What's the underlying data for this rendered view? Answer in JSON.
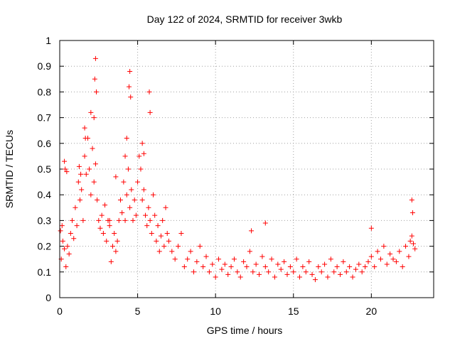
{
  "chart_data": {
    "type": "scatter",
    "title": "Day 122 of 2024, SRMTID for receiver 3wkb",
    "xlabel": "GPS time / hours",
    "ylabel": "SRMTID / TECUs",
    "xlim": [
      0,
      24
    ],
    "ylim": [
      0,
      1
    ],
    "xticks": [
      0,
      5,
      10,
      15,
      20
    ],
    "xtick_labels": [
      "0",
      "5",
      "10",
      "15",
      "20"
    ],
    "yticks": [
      0,
      0.1,
      0.2,
      0.3,
      0.4,
      0.5,
      0.6,
      0.7,
      0.8,
      0.9,
      1
    ],
    "ytick_labels": [
      "0",
      "0.1",
      "0.2",
      "0.3",
      "0.4",
      "0.5",
      "0.6",
      "0.7",
      "0.8",
      "0.9",
      "1"
    ],
    "grid": true,
    "marker": "plus",
    "color": "#ff0000",
    "series": [
      {
        "name": "SRMTID",
        "x": [
          0.05,
          0.1,
          0.15,
          0.2,
          0.3,
          0.4,
          0.5,
          0.6,
          0.7,
          0.8,
          0.9,
          1.0,
          1.1,
          1.2,
          1.3,
          1.4,
          1.5,
          1.6,
          1.7,
          1.8,
          1.9,
          2.0,
          2.1,
          2.2,
          2.3,
          2.4,
          2.5,
          2.6,
          2.7,
          2.8,
          2.9,
          3.0,
          3.1,
          3.2,
          3.3,
          3.4,
          3.5,
          3.6,
          3.7,
          3.8,
          3.9,
          4.0,
          4.1,
          4.2,
          4.3,
          4.4,
          4.5,
          4.6,
          4.7,
          4.8,
          4.9,
          5.0,
          5.1,
          5.2,
          5.3,
          5.4,
          5.5,
          5.6,
          5.7,
          5.8,
          5.9,
          6.0,
          6.1,
          6.2,
          6.3,
          6.4,
          6.5,
          6.6,
          6.7,
          6.8,
          6.9,
          7.0,
          7.2,
          7.4,
          7.6,
          7.8,
          8.0,
          8.2,
          8.4,
          8.6,
          8.8,
          9.0,
          9.2,
          9.4,
          9.6,
          9.8,
          10.0,
          10.2,
          10.4,
          10.6,
          10.8,
          11.0,
          11.2,
          11.4,
          11.6,
          11.8,
          12.0,
          12.2,
          12.4,
          12.6,
          12.8,
          13.0,
          13.2,
          13.4,
          13.6,
          13.8,
          14.0,
          14.2,
          14.4,
          14.6,
          14.8,
          15.0,
          15.2,
          15.4,
          15.6,
          15.8,
          16.0,
          16.2,
          16.4,
          16.6,
          16.8,
          17.0,
          17.2,
          17.4,
          17.6,
          17.8,
          18.0,
          18.2,
          18.4,
          18.6,
          18.8,
          19.0,
          19.2,
          19.4,
          19.6,
          19.8,
          20.0,
          20.2,
          20.4,
          20.6,
          20.8,
          21.0,
          21.2,
          21.4,
          21.6,
          21.8,
          22.0,
          22.2,
          22.4,
          22.5,
          22.6,
          22.7,
          22.8,
          2.3,
          2.25,
          2.35,
          4.5,
          4.45,
          4.55,
          5.75,
          5.8,
          1.6,
          1.65,
          0.3,
          0.35,
          0.45,
          1.25,
          1.35,
          5.3,
          5.4,
          2.2,
          2.0,
          4.3,
          4.2,
          3.6,
          3.2,
          12.3,
          13.2,
          20.0,
          22.6,
          22.65
        ],
        "y": [
          0.26,
          0.15,
          0.28,
          0.22,
          0.19,
          0.12,
          0.2,
          0.17,
          0.25,
          0.3,
          0.23,
          0.35,
          0.28,
          0.45,
          0.38,
          0.42,
          0.3,
          0.55,
          0.48,
          0.62,
          0.5,
          0.4,
          0.58,
          0.45,
          0.52,
          0.38,
          0.3,
          0.27,
          0.32,
          0.25,
          0.36,
          0.22,
          0.3,
          0.28,
          0.14,
          0.2,
          0.25,
          0.18,
          0.22,
          0.3,
          0.38,
          0.33,
          0.45,
          0.3,
          0.4,
          0.5,
          0.35,
          0.42,
          0.3,
          0.38,
          0.32,
          0.45,
          0.55,
          0.5,
          0.38,
          0.42,
          0.32,
          0.28,
          0.35,
          0.3,
          0.25,
          0.4,
          0.32,
          0.22,
          0.28,
          0.18,
          0.24,
          0.3,
          0.2,
          0.35,
          0.25,
          0.22,
          0.18,
          0.15,
          0.2,
          0.25,
          0.12,
          0.15,
          0.18,
          0.1,
          0.14,
          0.2,
          0.12,
          0.16,
          0.1,
          0.13,
          0.08,
          0.15,
          0.11,
          0.13,
          0.09,
          0.12,
          0.15,
          0.1,
          0.08,
          0.14,
          0.12,
          0.18,
          0.1,
          0.13,
          0.09,
          0.16,
          0.12,
          0.1,
          0.15,
          0.08,
          0.13,
          0.11,
          0.14,
          0.09,
          0.12,
          0.1,
          0.15,
          0.08,
          0.12,
          0.1,
          0.14,
          0.09,
          0.07,
          0.12,
          0.1,
          0.13,
          0.08,
          0.15,
          0.1,
          0.12,
          0.09,
          0.14,
          0.1,
          0.12,
          0.08,
          0.11,
          0.13,
          0.1,
          0.12,
          0.14,
          0.16,
          0.12,
          0.18,
          0.15,
          0.2,
          0.13,
          0.17,
          0.15,
          0.14,
          0.18,
          0.12,
          0.2,
          0.16,
          0.22,
          0.24,
          0.21,
          0.19,
          0.93,
          0.85,
          0.8,
          0.88,
          0.82,
          0.78,
          0.8,
          0.72,
          0.66,
          0.62,
          0.53,
          0.5,
          0.49,
          0.51,
          0.48,
          0.6,
          0.56,
          0.7,
          0.72,
          0.62,
          0.55,
          0.47,
          0.3,
          0.26,
          0.29,
          0.27,
          0.38,
          0.33
        ]
      }
    ]
  }
}
